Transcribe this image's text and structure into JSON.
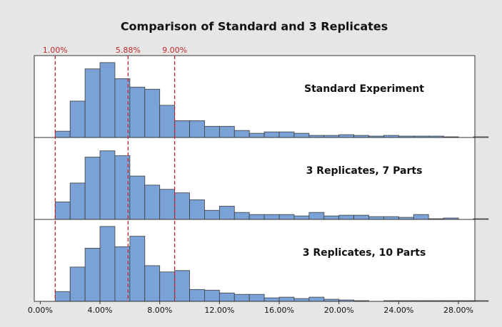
{
  "chart_data": {
    "type": "histogram",
    "title": "Comparison of Standard and 3 Replicates",
    "bins": [
      1,
      2,
      3,
      4,
      5,
      6,
      7,
      8,
      9,
      10,
      11,
      12,
      13,
      14,
      15,
      16,
      17,
      18,
      19,
      20,
      21,
      22,
      23,
      24,
      25,
      26,
      27,
      28,
      29,
      30
    ],
    "color": "#7ba2d6",
    "edge_color": "#3c3c3c",
    "series": [
      {
        "name": "Standard Experiment",
        "values": [
          9,
          52,
          98,
          107,
          84,
          72,
          69,
          46,
          24,
          24,
          16,
          16,
          10,
          6,
          8,
          8,
          6,
          3,
          3,
          4,
          3,
          2,
          3,
          2,
          2,
          2,
          1,
          0,
          1
        ]
      },
      {
        "name": "3 Replicates, 7 Parts",
        "values": [
          25,
          52,
          89,
          98,
          91,
          62,
          49,
          43,
          38,
          28,
          13,
          19,
          10,
          7,
          7,
          7,
          5,
          10,
          5,
          6,
          6,
          4,
          4,
          3,
          7,
          1,
          2,
          0,
          1
        ]
      },
      {
        "name": "3 Replicates, 10 Parts",
        "values": [
          14,
          49,
          76,
          107,
          78,
          93,
          51,
          42,
          44,
          17,
          16,
          12,
          10,
          10,
          5,
          6,
          4,
          6,
          3,
          2,
          1,
          0,
          1,
          1,
          1,
          1,
          1,
          1,
          1
        ]
      }
    ],
    "reference_lines": [
      {
        "value": 1,
        "label": "1.00%"
      },
      {
        "value": 5.88,
        "label": "5.88%"
      },
      {
        "value": 9,
        "label": "9.00%"
      }
    ],
    "reference_color": "#c0282d",
    "xlim": [
      -0.4,
      29.1
    ],
    "xticks": [
      {
        "value": 0,
        "label": "0.00%"
      },
      {
        "value": 4,
        "label": "4.00%"
      },
      {
        "value": 8,
        "label": "8.00%"
      },
      {
        "value": 12,
        "label": "12.00%"
      },
      {
        "value": 16,
        "label": "16.00%"
      },
      {
        "value": 20,
        "label": "20.00%"
      },
      {
        "value": 24,
        "label": "24.00%"
      },
      {
        "value": 28,
        "label": "28.00%"
      }
    ],
    "ylim": [
      0,
      115
    ]
  }
}
